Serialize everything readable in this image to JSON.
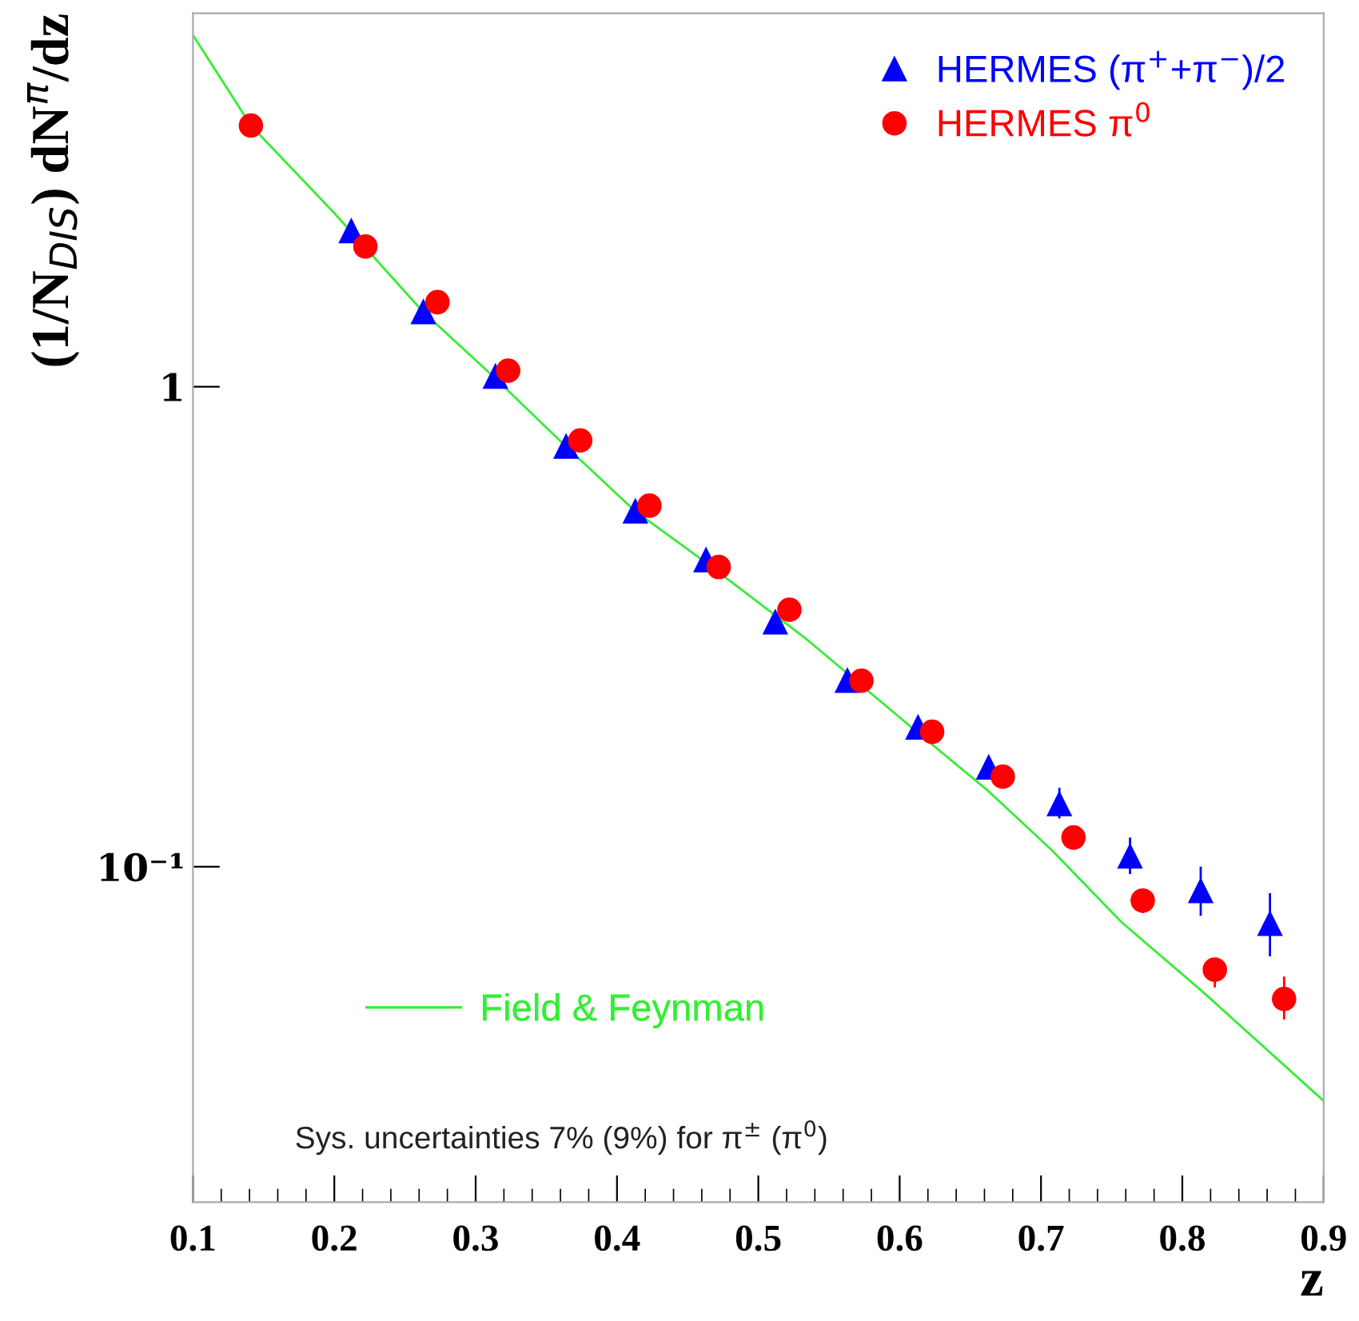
{
  "chart_data": {
    "type": "scatter",
    "xlabel": "z",
    "ylabel": "(1/N$_{DIS}$) dN$^{π}$/dz",
    "xlim": [
      0.1,
      0.9
    ],
    "xticks": [
      0.1,
      0.2,
      0.3,
      0.4,
      0.5,
      0.6,
      0.7,
      0.8,
      0.9
    ],
    "ylim": [
      0.02,
      6
    ],
    "yticks": [
      {
        "value": 0.1,
        "label": "10⁻¹"
      },
      1
    ],
    "log": "y",
    "grid": false,
    "legend": "top right",
    "series": [
      {
        "name": "HERMES (π$^{+}$+π$^{−}$)/2",
        "color": "#0000ff",
        "marker": "triangle",
        "x": [
          0.212,
          0.263,
          0.314,
          0.364,
          0.413,
          0.463,
          0.512,
          0.563,
          0.613,
          0.663,
          0.713,
          0.763,
          0.813,
          0.862
        ],
        "values": [
          2.11,
          1.43,
          1.05,
          0.75,
          0.55,
          0.435,
          0.323,
          0.244,
          0.195,
          0.161,
          0.135,
          0.105,
          0.089,
          0.076
        ],
        "errors": [
          null,
          null,
          null,
          null,
          null,
          null,
          null,
          null,
          null,
          null,
          [
            0.126,
            0.146
          ],
          [
            0.0965,
            0.115
          ],
          [
            0.079,
            0.1
          ],
          [
            0.065,
            0.088
          ]
        ]
      },
      {
        "name": "HERMES π$^{0}$",
        "color": "#ff0000",
        "marker": "circle",
        "x": [
          0.141,
          0.222,
          0.273,
          0.323,
          0.374,
          0.423,
          0.472,
          0.522,
          0.573,
          0.623,
          0.673,
          0.723,
          0.772,
          0.823,
          0.872
        ],
        "values": [
          3.5,
          1.96,
          1.5,
          1.08,
          0.773,
          0.565,
          0.421,
          0.343,
          0.244,
          0.191,
          0.154,
          0.115,
          0.085,
          0.061,
          0.053
        ],
        "errors": [
          null,
          null,
          null,
          null,
          null,
          null,
          null,
          null,
          null,
          null,
          null,
          null,
          [
            0.08,
            0.089
          ],
          [
            0.056,
            0.064
          ],
          [
            0.048,
            0.059
          ]
        ]
      },
      {
        "name": "Field & Feynman",
        "type": "line",
        "color": "#33ee33",
        "x": [
          0.1,
          0.141,
          0.2,
          0.263,
          0.314,
          0.364,
          0.413,
          0.463,
          0.534,
          0.613,
          0.663,
          0.708,
          0.757,
          0.814,
          0.9
        ],
        "values": [
          5.4,
          3.5,
          2.3,
          1.43,
          1.04,
          0.75,
          0.55,
          0.43,
          0.298,
          0.19,
          0.1435,
          0.108,
          0.0766,
          0.055,
          0.0325
        ]
      }
    ],
    "annotations": [
      "Sys. uncertainties 7% (9%) for π$^{±}$ (π$^{0}$)"
    ]
  }
}
